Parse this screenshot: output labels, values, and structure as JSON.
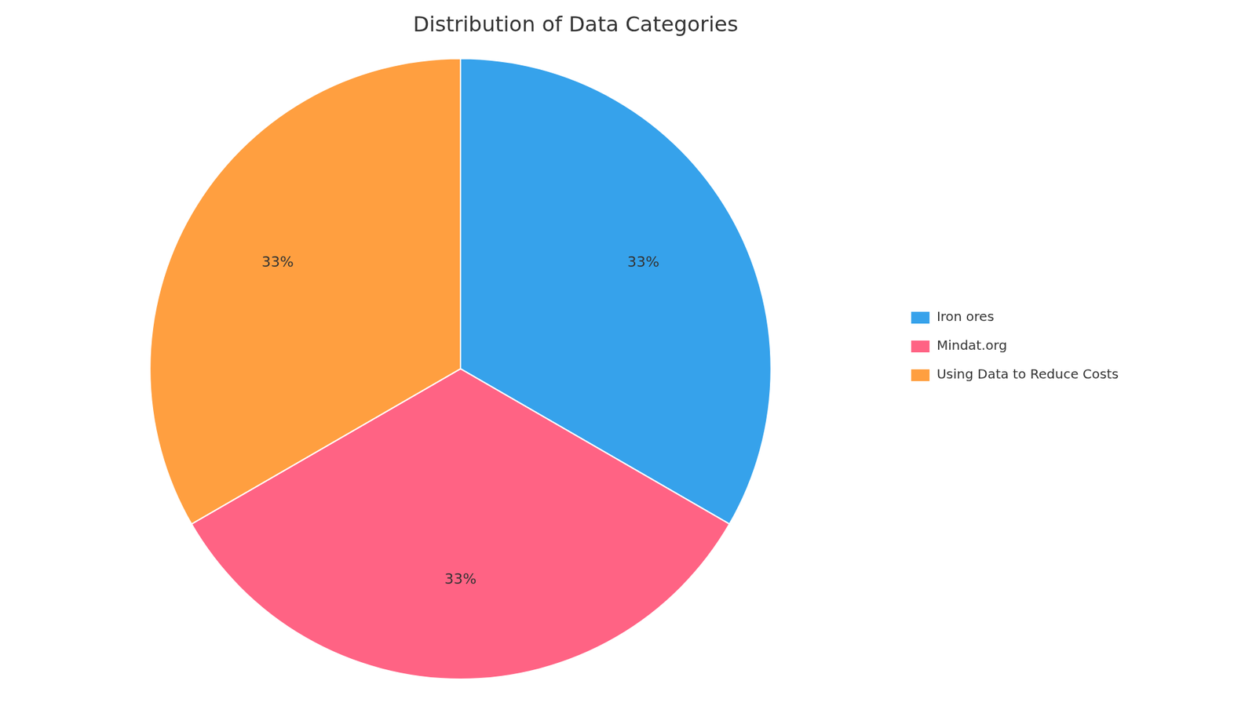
{
  "chart_data": {
    "type": "pie",
    "title": "Distribution of Data Categories",
    "categories": [
      "Iron ores",
      "Mindat.org",
      "Using Data to Reduce Costs"
    ],
    "values": [
      33,
      33,
      33
    ],
    "value_labels": [
      "33%",
      "33%",
      "33%"
    ],
    "data_labels": true,
    "legend": "right"
  }
}
